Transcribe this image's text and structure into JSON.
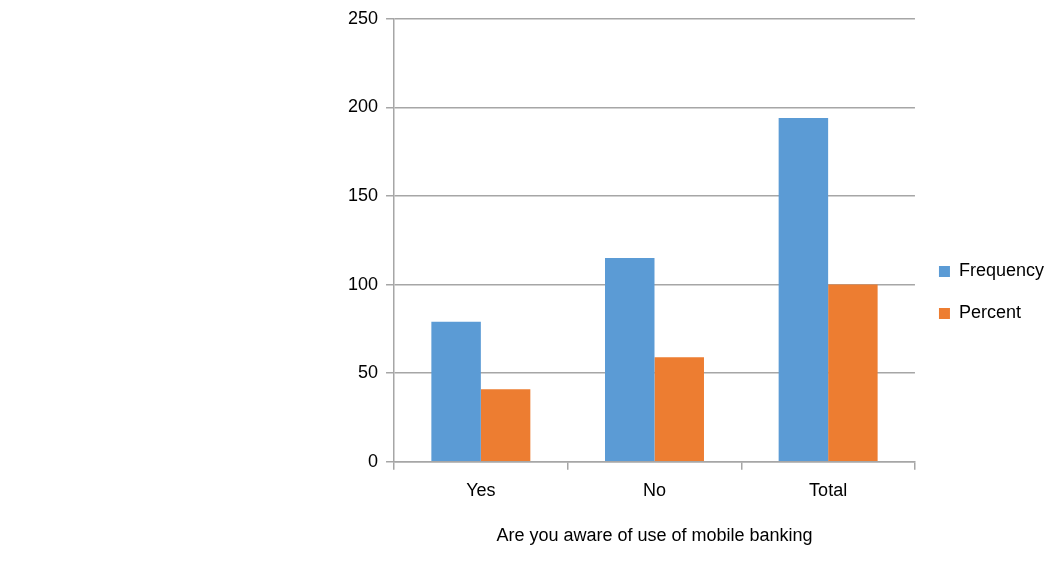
{
  "chart_data": {
    "type": "bar",
    "xlabel": "Are you aware of use of mobile banking",
    "categories": [
      "Yes",
      "No",
      "Total"
    ],
    "series": [
      {
        "name": "Frequency",
        "color": "#5b9bd5",
        "values": [
          79,
          115,
          194
        ]
      },
      {
        "name": "Percent",
        "color": "#ed7d31",
        "values": [
          41,
          59,
          100
        ]
      }
    ],
    "ylim": [
      0,
      250
    ],
    "yticks": [
      0,
      50,
      100,
      150,
      200,
      250
    ],
    "grid": "y",
    "legend": "right"
  }
}
